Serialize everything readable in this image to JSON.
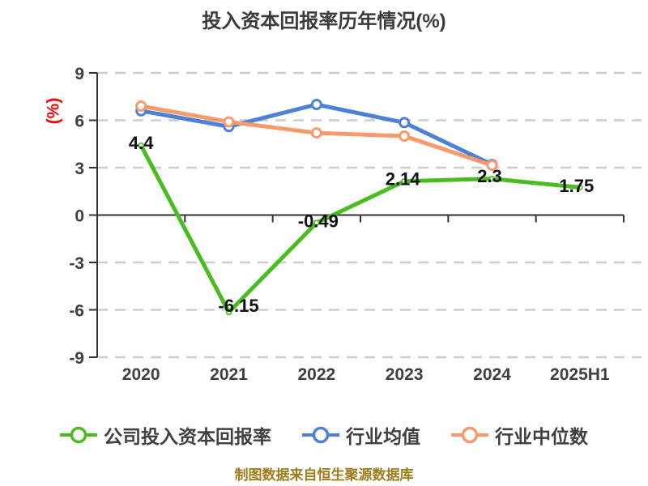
{
  "footer": {
    "note": "制图数据来自恒生聚源数据库"
  },
  "chart_data": {
    "type": "line",
    "title": "投入资本回报率历年情况(%)",
    "ylabel": "(%)",
    "ylim": [
      -9,
      9
    ],
    "yticks": [
      9,
      6,
      3,
      0,
      -3,
      -6,
      -9
    ],
    "grid": "horizontal-dashed",
    "legend_position": "bottom",
    "categories": [
      "2020",
      "2021",
      "2022",
      "2023",
      "2024",
      "2025H1"
    ],
    "series": [
      {
        "id": "company-roic",
        "name": "公司投入资本回报率",
        "color": "#49bd20",
        "values": [
          4.4,
          -6.15,
          -0.49,
          2.14,
          2.3,
          1.75
        ],
        "point_labels": [
          "4.4",
          "-6.15",
          "-0.49",
          "2.14",
          "2.3",
          "1.75"
        ]
      },
      {
        "id": "industry-mean",
        "name": "行业均值",
        "color": "#4d80d8",
        "values": [
          6.6,
          5.6,
          7.0,
          5.85,
          3.2,
          null
        ]
      },
      {
        "id": "industry-median",
        "name": "行业中位数",
        "color": "#f89b6c",
        "values": [
          6.9,
          5.9,
          5.2,
          5.0,
          3.15,
          null
        ]
      }
    ],
    "colors": {
      "axis": "#333333",
      "grid": "#cdcdcd",
      "tick_text": "#3f3f3f",
      "value_label": "#111111",
      "ylabel": "#fe0000",
      "title": "#3b3b3b",
      "footer": "#a07c1a",
      "background": "#ffffff"
    }
  }
}
